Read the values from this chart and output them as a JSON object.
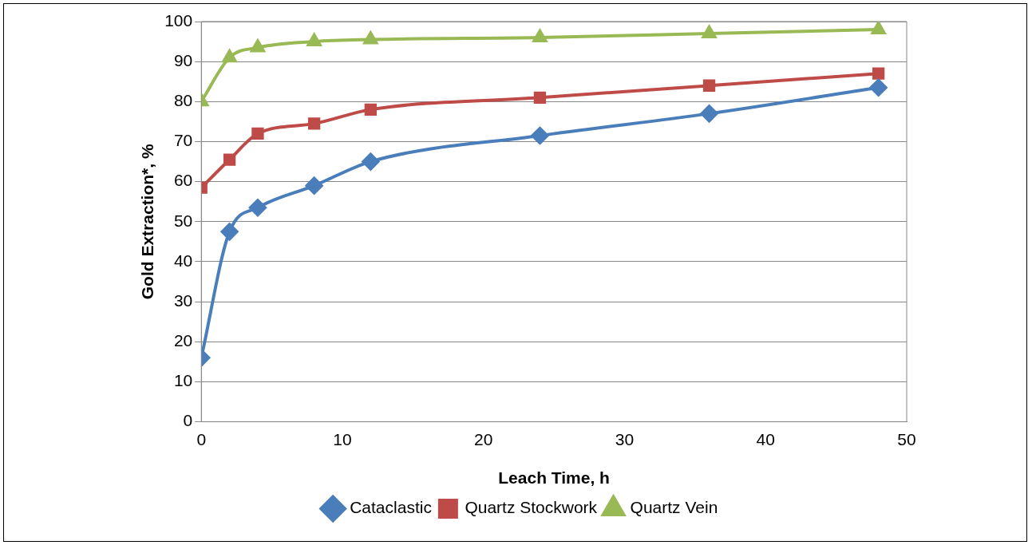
{
  "chart_data": {
    "type": "line",
    "xlabel": "Leach Time, h",
    "ylabel": "Gold Extraction*, %",
    "xlim": [
      0,
      50
    ],
    "xticks": [
      0,
      10,
      20,
      30,
      40,
      50
    ],
    "ylim": [
      0,
      100
    ],
    "yticks": [
      0,
      10,
      20,
      30,
      40,
      50,
      60,
      70,
      80,
      90,
      100
    ],
    "grid": "y",
    "legend": "bottom",
    "series": [
      {
        "name": "Cataclastic",
        "color": "#4a7ebb",
        "marker": "diamond",
        "x": [
          0,
          2,
          4,
          8,
          12,
          24,
          36,
          48
        ],
        "values": [
          16,
          47.5,
          53.5,
          59,
          65,
          71.5,
          77,
          83.5
        ]
      },
      {
        "name": "Quartz Stockwork",
        "color": "#be4b48",
        "marker": "square",
        "x": [
          0,
          2,
          4,
          8,
          12,
          24,
          36,
          48
        ],
        "values": [
          58.5,
          65.5,
          72,
          74.5,
          78,
          81,
          84,
          87
        ]
      },
      {
        "name": "Quartz Vein",
        "color": "#98b954",
        "marker": "triangle",
        "x": [
          0,
          2,
          4,
          8,
          12,
          24,
          36,
          48
        ],
        "values": [
          80,
          91,
          93.5,
          95,
          95.5,
          96,
          97,
          98
        ]
      }
    ]
  }
}
